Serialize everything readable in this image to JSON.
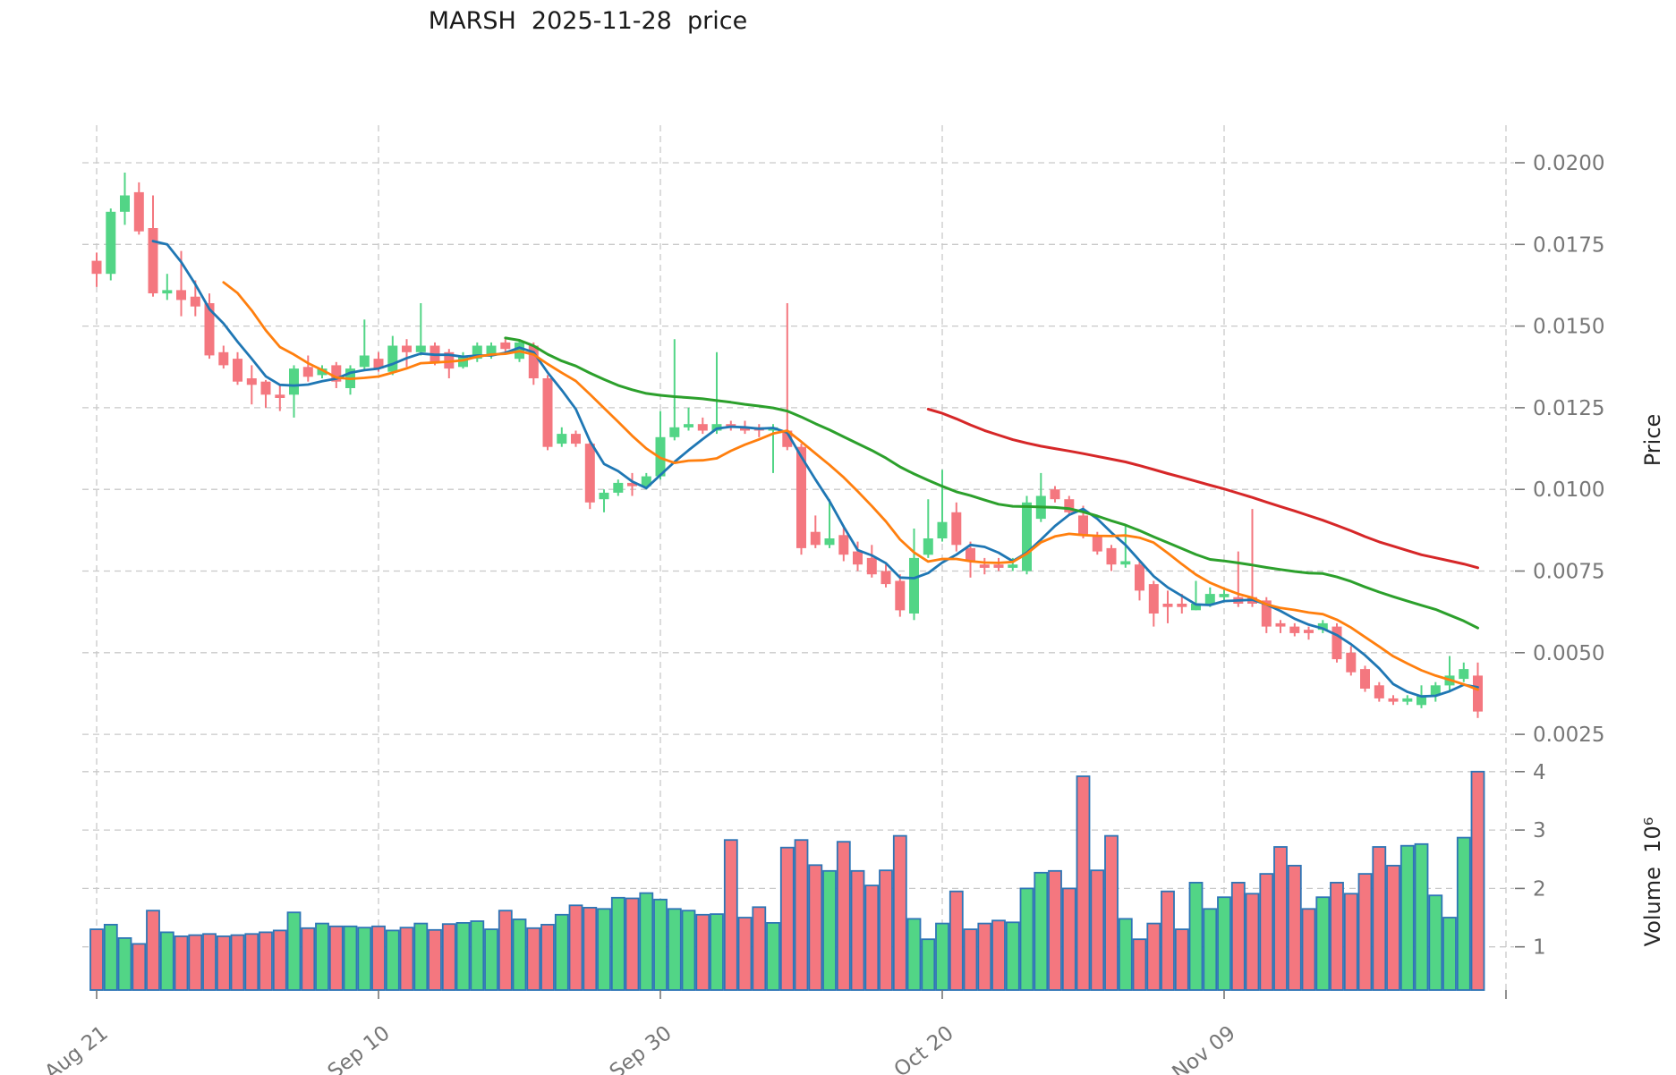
{
  "chart_data": {
    "type": "candlestick",
    "title": "MARSH  2025-11-28  price",
    "subtitle": "",
    "legend_position": "none",
    "grid": true,
    "panels": [
      "price",
      "volume"
    ],
    "price_axis": {
      "label": "Price",
      "side": "right",
      "ticks": [
        0.02,
        0.0175,
        0.015,
        0.0125,
        0.01,
        0.0075,
        0.005,
        0.0025
      ],
      "tick_labels": [
        "0.0200",
        "0.0175",
        "0.0150",
        "0.0125",
        "0.0100",
        "0.0075",
        "0.0050",
        "0.0025"
      ]
    },
    "volume_axis": {
      "label": "Volume",
      "scale_factor": "10⁶",
      "full_label": "Volume  10⁶",
      "side": "right",
      "ticks": [
        4,
        3,
        2,
        1
      ],
      "tick_labels": [
        "4",
        "3",
        "2",
        "1"
      ]
    },
    "x_axis": {
      "tick_labels": [
        "Aug 21",
        "Sep 10",
        "Sep 30",
        "Oct 20",
        "Nov 09"
      ],
      "tick_indices": [
        0,
        20,
        40,
        60,
        80
      ],
      "gridline_indices": [
        0,
        20,
        40,
        60,
        80,
        100
      ]
    },
    "moving_averages": [
      {
        "name": "MA5",
        "period": 5,
        "color": "#1f77b4",
        "width": 2.8
      },
      {
        "name": "MA10",
        "period": 10,
        "color": "#ff7f0e",
        "width": 2.8
      },
      {
        "name": "MA30",
        "period": 30,
        "color": "#2ca02c",
        "width": 3.0
      },
      {
        "name": "MA60",
        "period": 60,
        "color": "#d62728",
        "width": 3.0
      }
    ],
    "colors": {
      "up": "#52d586",
      "down": "#f4777f",
      "volume_edge": "#2e75b6",
      "grid": "#c9c9c9",
      "tick_text": "#767676",
      "title_text": "#1a1a1a"
    },
    "candles_format": [
      "open",
      "high",
      "low",
      "close",
      "volume_millions"
    ],
    "candles": [
      [
        0.017,
        0.01725,
        0.0162,
        0.0166,
        1.3
      ],
      [
        0.0166,
        0.0186,
        0.0164,
        0.0185,
        1.38
      ],
      [
        0.0185,
        0.0197,
        0.0181,
        0.019,
        1.15
      ],
      [
        0.0191,
        0.0194,
        0.0178,
        0.0179,
        1.05
      ],
      [
        0.018,
        0.019,
        0.0159,
        0.016,
        1.62
      ],
      [
        0.016,
        0.0166,
        0.0158,
        0.0161,
        1.25
      ],
      [
        0.0161,
        0.0173,
        0.0153,
        0.0158,
        1.18
      ],
      [
        0.0159,
        0.0164,
        0.0153,
        0.0156,
        1.2
      ],
      [
        0.0157,
        0.016,
        0.014,
        0.0141,
        1.22
      ],
      [
        0.0142,
        0.0144,
        0.0137,
        0.0138,
        1.18
      ],
      [
        0.014,
        0.0142,
        0.0132,
        0.0133,
        1.2
      ],
      [
        0.0134,
        0.0138,
        0.0126,
        0.0132,
        1.22
      ],
      [
        0.0133,
        0.01335,
        0.0125,
        0.0129,
        1.25
      ],
      [
        0.0129,
        0.0132,
        0.0124,
        0.0128,
        1.28
      ],
      [
        0.0129,
        0.0138,
        0.0122,
        0.0137,
        1.59
      ],
      [
        0.01375,
        0.0141,
        0.0133,
        0.01345,
        1.32
      ],
      [
        0.0135,
        0.0138,
        0.0134,
        0.0137,
        1.4
      ],
      [
        0.0138,
        0.0139,
        0.0131,
        0.0133,
        1.35
      ],
      [
        0.0131,
        0.0138,
        0.0129,
        0.0137,
        1.35
      ],
      [
        0.01375,
        0.0152,
        0.01365,
        0.0141,
        1.33
      ],
      [
        0.014,
        0.0142,
        0.0136,
        0.0137,
        1.35
      ],
      [
        0.0136,
        0.0147,
        0.0135,
        0.0144,
        1.28
      ],
      [
        0.0144,
        0.0146,
        0.01375,
        0.0142,
        1.33
      ],
      [
        0.0142,
        0.0157,
        0.0141,
        0.0144,
        1.4
      ],
      [
        0.0144,
        0.0145,
        0.0138,
        0.0139,
        1.29
      ],
      [
        0.0142,
        0.0143,
        0.0134,
        0.0137,
        1.39
      ],
      [
        0.01375,
        0.0142,
        0.0137,
        0.0141,
        1.41
      ],
      [
        0.014,
        0.0145,
        0.0139,
        0.0144,
        1.44
      ],
      [
        0.0141,
        0.0145,
        0.014,
        0.0144,
        1.3
      ],
      [
        0.0145,
        0.0146,
        0.0142,
        0.0143,
        1.62
      ],
      [
        0.014,
        0.0146,
        0.0139,
        0.0145,
        1.47
      ],
      [
        0.0144,
        0.0145,
        0.0132,
        0.0134,
        1.32
      ],
      [
        0.0134,
        0.0135,
        0.0112,
        0.0113,
        1.38
      ],
      [
        0.0114,
        0.0119,
        0.0113,
        0.0117,
        1.55
      ],
      [
        0.0117,
        0.0118,
        0.0113,
        0.0114,
        1.71
      ],
      [
        0.0114,
        0.0115,
        0.0094,
        0.0096,
        1.67
      ],
      [
        0.0097,
        0.01,
        0.0093,
        0.0099,
        1.65
      ],
      [
        0.0099,
        0.0103,
        0.0098,
        0.0102,
        1.84
      ],
      [
        0.0102,
        0.0105,
        0.0098,
        0.0101,
        1.83
      ],
      [
        0.0101,
        0.0105,
        0.01,
        0.0104,
        1.92
      ],
      [
        0.0104,
        0.0124,
        0.0103,
        0.0116,
        1.81
      ],
      [
        0.0116,
        0.0146,
        0.0115,
        0.0119,
        1.65
      ],
      [
        0.0119,
        0.0125,
        0.0118,
        0.012,
        1.62
      ],
      [
        0.012,
        0.0122,
        0.0117,
        0.0118,
        1.55
      ],
      [
        0.0118,
        0.0142,
        0.0117,
        0.012,
        1.56
      ],
      [
        0.012,
        0.0121,
        0.0118,
        0.0119,
        2.83
      ],
      [
        0.0119,
        0.0121,
        0.0117,
        0.0118,
        1.5
      ],
      [
        0.0119,
        0.012,
        0.0116,
        0.0118,
        1.68
      ],
      [
        0.0118,
        0.012,
        0.0105,
        0.0119,
        1.41
      ],
      [
        0.0118,
        0.0157,
        0.0112,
        0.0113,
        2.7
      ],
      [
        0.0113,
        0.0114,
        0.008,
        0.0082,
        2.83
      ],
      [
        0.0087,
        0.0092,
        0.0082,
        0.0083,
        2.4
      ],
      [
        0.0083,
        0.0097,
        0.0082,
        0.0085,
        2.3
      ],
      [
        0.0086,
        0.0089,
        0.0078,
        0.008,
        2.8
      ],
      [
        0.0081,
        0.0084,
        0.0075,
        0.0077,
        2.3
      ],
      [
        0.0079,
        0.0083,
        0.0073,
        0.0074,
        2.05
      ],
      [
        0.0075,
        0.0077,
        0.007,
        0.0071,
        2.31
      ],
      [
        0.0072,
        0.0074,
        0.0061,
        0.0063,
        2.9
      ],
      [
        0.0062,
        0.0088,
        0.006,
        0.0079,
        1.48
      ],
      [
        0.008,
        0.0097,
        0.0079,
        0.0085,
        1.13
      ],
      [
        0.0085,
        0.0106,
        0.0084,
        0.009,
        1.4
      ],
      [
        0.0093,
        0.0096,
        0.0081,
        0.0083,
        1.95
      ],
      [
        0.0082,
        0.0084,
        0.0073,
        0.0078,
        1.3
      ],
      [
        0.0077,
        0.0079,
        0.0074,
        0.0076,
        1.4
      ],
      [
        0.0077,
        0.0079,
        0.0075,
        0.0076,
        1.45
      ],
      [
        0.0076,
        0.0079,
        0.0075,
        0.0077,
        1.42
      ],
      [
        0.0075,
        0.0098,
        0.0074,
        0.0096,
        2.0
      ],
      [
        0.0091,
        0.0105,
        0.009,
        0.0098,
        2.27
      ],
      [
        0.01,
        0.0101,
        0.0096,
        0.0097,
        2.3
      ],
      [
        0.0097,
        0.0098,
        0.0092,
        0.0093,
        2.0
      ],
      [
        0.0092,
        0.0095,
        0.0085,
        0.0086,
        3.92
      ],
      [
        0.0086,
        0.0087,
        0.008,
        0.0081,
        2.31
      ],
      [
        0.0082,
        0.0083,
        0.0075,
        0.0077,
        2.9
      ],
      [
        0.0077,
        0.0089,
        0.0076,
        0.0078,
        1.48
      ],
      [
        0.0077,
        0.0078,
        0.0066,
        0.0069,
        1.13
      ],
      [
        0.0071,
        0.0072,
        0.0058,
        0.0062,
        1.4
      ],
      [
        0.0065,
        0.0069,
        0.0059,
        0.0064,
        1.95
      ],
      [
        0.0065,
        0.0068,
        0.0062,
        0.0064,
        1.3
      ],
      [
        0.0063,
        0.0072,
        0.0063,
        0.0065,
        2.1
      ],
      [
        0.0065,
        0.007,
        0.0064,
        0.0068,
        1.65
      ],
      [
        0.0067,
        0.007,
        0.0066,
        0.0068,
        1.85
      ],
      [
        0.0067,
        0.0081,
        0.0064,
        0.0065,
        2.1
      ],
      [
        0.0067,
        0.0094,
        0.0064,
        0.0065,
        1.91
      ],
      [
        0.0066,
        0.0067,
        0.0056,
        0.0058,
        2.25
      ],
      [
        0.0059,
        0.006,
        0.0056,
        0.0058,
        2.71
      ],
      [
        0.0058,
        0.0059,
        0.0055,
        0.0056,
        2.39
      ],
      [
        0.0057,
        0.0058,
        0.0054,
        0.0056,
        1.65
      ],
      [
        0.0057,
        0.006,
        0.0056,
        0.0059,
        1.85
      ],
      [
        0.0058,
        0.0059,
        0.0047,
        0.0048,
        2.1
      ],
      [
        0.005,
        0.0052,
        0.0043,
        0.0044,
        1.91
      ],
      [
        0.0045,
        0.0046,
        0.0038,
        0.0039,
        2.25
      ],
      [
        0.004,
        0.0041,
        0.0035,
        0.0036,
        2.71
      ],
      [
        0.0036,
        0.0037,
        0.0034,
        0.0035,
        2.39
      ],
      [
        0.0035,
        0.0037,
        0.0034,
        0.0036,
        2.73
      ],
      [
        0.0034,
        0.004,
        0.0033,
        0.0037,
        2.76
      ],
      [
        0.0037,
        0.0041,
        0.0035,
        0.004,
        1.88
      ],
      [
        0.004,
        0.0049,
        0.0038,
        0.0043,
        1.5
      ],
      [
        0.0042,
        0.0047,
        0.0041,
        0.0045,
        2.87
      ],
      [
        0.0043,
        0.0047,
        0.003,
        0.0032,
        4.0
      ]
    ]
  }
}
